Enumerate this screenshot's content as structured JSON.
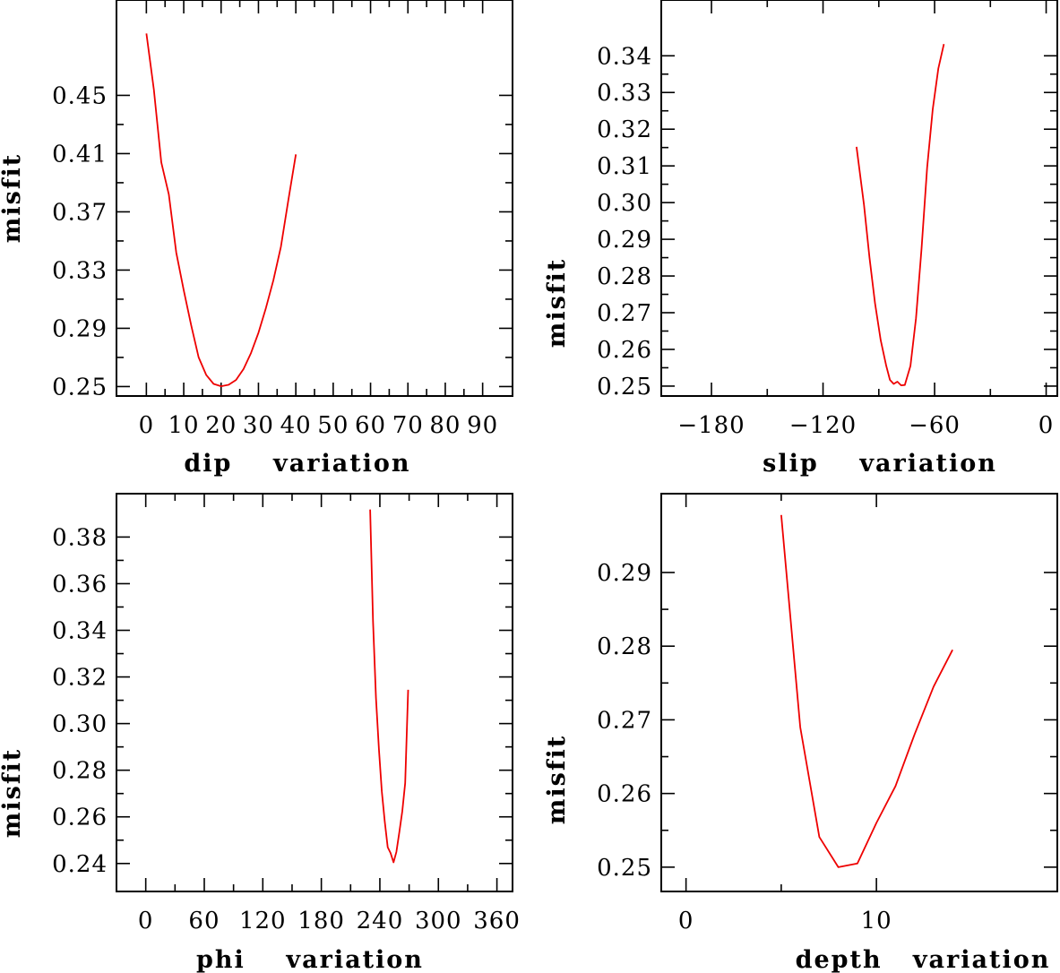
{
  "chart_data": [
    {
      "type": "line",
      "xlabel": "dip    variation",
      "ylabel": "misfit",
      "xlim": [
        -8,
        98
      ],
      "ylim": [
        0.2435,
        0.5155
      ],
      "xticks": [
        0,
        10,
        20,
        30,
        40,
        50,
        60,
        70,
        80,
        90
      ],
      "yticks": [
        0.25,
        0.29,
        0.33,
        0.37,
        0.41,
        0.45
      ],
      "ytick_labels": [
        "0.25",
        "0.29",
        "0.33",
        "0.37",
        "0.41",
        "0.45"
      ],
      "series": [
        {
          "color": "#ee0000",
          "x": [
            0,
            2,
            4,
            6,
            8,
            10,
            12,
            14,
            16,
            18,
            20,
            22,
            24,
            26,
            28,
            30,
            32,
            34,
            36,
            38,
            40
          ],
          "y": [
            0.4925,
            0.454,
            0.404,
            0.382,
            0.342,
            0.316,
            0.292,
            0.27,
            0.258,
            0.2518,
            0.2502,
            0.2512,
            0.2545,
            0.262,
            0.273,
            0.287,
            0.304,
            0.323,
            0.346,
            0.378,
            0.4095
          ]
        }
      ]
    },
    {
      "type": "line",
      "xlabel": "slip    variation",
      "ylabel": "misfit",
      "xlim": [
        -207,
        6
      ],
      "ylim": [
        0.2473,
        0.3552
      ],
      "xticks": [
        -180,
        -120,
        -60,
        0
      ],
      "xtick_labels": [
        "−180",
        "−120",
        "−60",
        "0"
      ],
      "yticks": [
        0.25,
        0.26,
        0.27,
        0.28,
        0.29,
        0.3,
        0.31,
        0.32,
        0.33,
        0.34
      ],
      "ytick_labels": [
        "0.25",
        "0.26",
        "0.27",
        "0.28",
        "0.29",
        "0.30",
        "0.31",
        "0.32",
        "0.33",
        "0.34"
      ],
      "series": [
        {
          "color": "#ee0000",
          "x": [
            -102,
            -98,
            -95,
            -92,
            -89,
            -86,
            -84,
            -82,
            -80,
            -78,
            -76,
            -73,
            -70,
            -67,
            -64,
            -61,
            -58,
            -55
          ],
          "y": [
            0.3152,
            0.2995,
            0.285,
            0.2725,
            0.2625,
            0.2555,
            0.2517,
            0.2506,
            0.2512,
            0.2502,
            0.2503,
            0.2555,
            0.2685,
            0.2875,
            0.3095,
            0.3255,
            0.3365,
            0.3432
          ]
        }
      ]
    },
    {
      "type": "line",
      "xlabel": "phi    variation",
      "ylabel": "misfit",
      "xlim": [
        -30,
        376
      ],
      "ylim": [
        0.228,
        0.3986
      ],
      "xticks": [
        0,
        60,
        120,
        180,
        240,
        300,
        360
      ],
      "yticks": [
        0.24,
        0.26,
        0.28,
        0.3,
        0.32,
        0.34,
        0.36,
        0.38
      ],
      "ytick_labels": [
        "0.24",
        "0.26",
        "0.28",
        "0.30",
        "0.32",
        "0.34",
        "0.36",
        "0.38"
      ],
      "series": [
        {
          "color": "#ee0000",
          "x": [
            230,
            233,
            236,
            239,
            242,
            245,
            248,
            251,
            254,
            257,
            260,
            263,
            266,
            269
          ],
          "y": [
            0.3918,
            0.344,
            0.311,
            0.289,
            0.271,
            0.258,
            0.247,
            0.2445,
            0.2405,
            0.245,
            0.2535,
            0.2625,
            0.2745,
            0.3145
          ]
        }
      ]
    },
    {
      "type": "line",
      "xlabel": "depth   variation",
      "ylabel": "misfit",
      "xlim": [
        -1.3,
        19.5
      ],
      "ylim": [
        0.2467,
        0.3007
      ],
      "xticks": [
        0,
        10
      ],
      "yticks": [
        0.25,
        0.26,
        0.27,
        0.28,
        0.29
      ],
      "series": [
        {
          "color": "#ee0000",
          "x": [
            5,
            6,
            7,
            8,
            9,
            10,
            11,
            12,
            13,
            14
          ],
          "y": [
            0.2978,
            0.269,
            0.2541,
            0.25,
            0.2505,
            0.256,
            0.261,
            0.268,
            0.2745,
            0.2795
          ]
        }
      ]
    }
  ]
}
